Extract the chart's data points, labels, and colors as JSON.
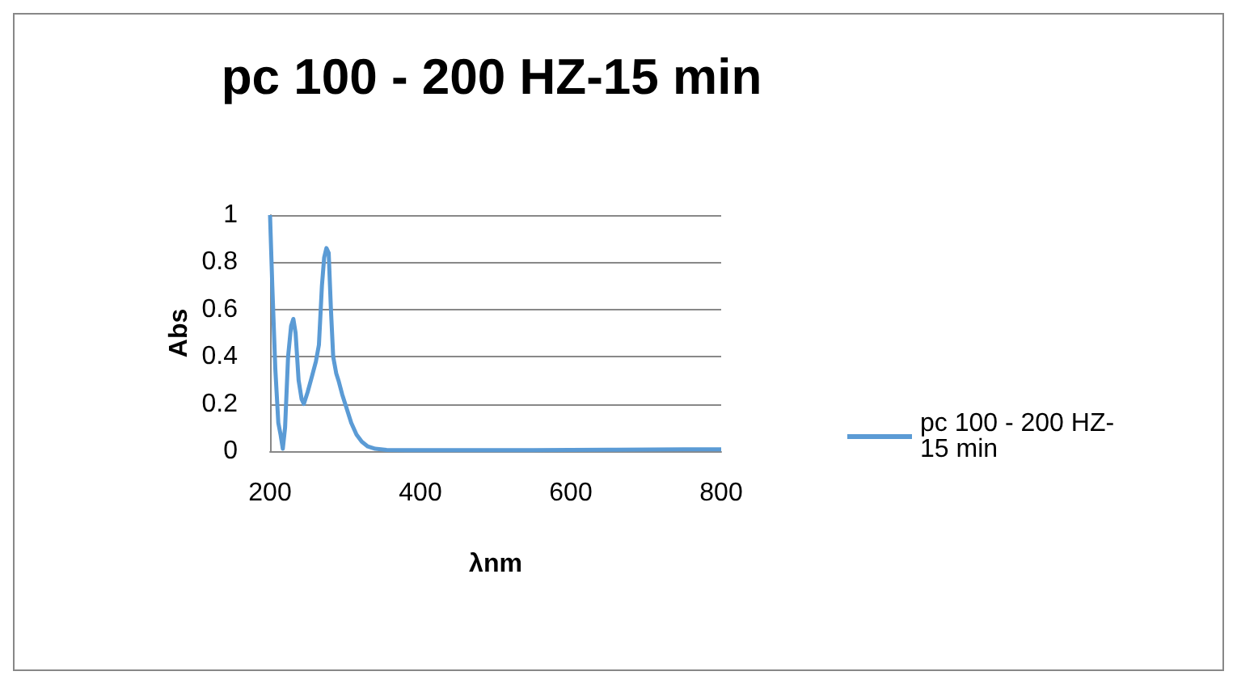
{
  "chart_data": {
    "type": "line",
    "title": "pc 100 - 200 HZ-15 min",
    "xlabel": "λnm",
    "ylabel": "Abs",
    "series": [
      {
        "name": "pc 100 - 200 HZ-\n15 min",
        "color": "#5b9bd5",
        "x": [
          200,
          203,
          207,
          211,
          214,
          217,
          220,
          224,
          228,
          231,
          234,
          238,
          242,
          245,
          250,
          256,
          261,
          265,
          269,
          272,
          275,
          278,
          281,
          284,
          288,
          291,
          296,
          301,
          308,
          315,
          322,
          330,
          340,
          355,
          380,
          450,
          550,
          650,
          750,
          800
        ],
        "values": [
          1,
          0.7,
          0.35,
          0.12,
          0.07,
          0.01,
          0.1,
          0.4,
          0.53,
          0.56,
          0.5,
          0.3,
          0.22,
          0.2,
          0.25,
          0.32,
          0.38,
          0.45,
          0.7,
          0.82,
          0.86,
          0.84,
          0.6,
          0.4,
          0.33,
          0.3,
          0.24,
          0.19,
          0.12,
          0.07,
          0.04,
          0.02,
          0.01,
          0.005,
          0.004,
          0.004,
          0.004,
          0.006,
          0.008,
          0.008
        ]
      }
    ],
    "xlim": [
      200,
      800
    ],
    "xticks": [
      200,
      400,
      600,
      800
    ],
    "ylim": [
      0,
      1
    ],
    "yticks": [
      0,
      0.2,
      0.4,
      0.6,
      0.8,
      1
    ],
    "grid": "y",
    "legend": "right",
    "marker": "none",
    "line_style": "solid"
  }
}
